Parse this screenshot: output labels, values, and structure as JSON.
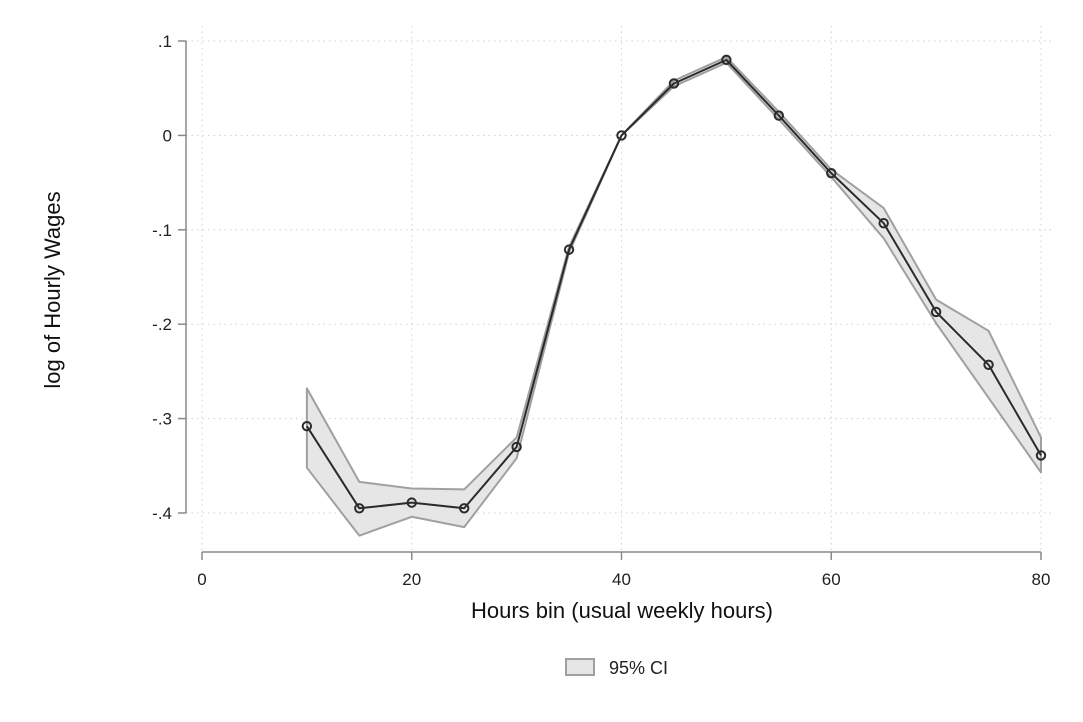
{
  "chart_data": {
    "type": "line",
    "title": "",
    "xlabel": "Hours bin (usual weekly hours)",
    "ylabel": "log of Hourly Wages",
    "xlim": [
      0,
      80
    ],
    "ylim": [
      -0.4,
      0.1
    ],
    "x_ticks": [
      {
        "value": 0,
        "label": "0"
      },
      {
        "value": 20,
        "label": "20"
      },
      {
        "value": 40,
        "label": "40"
      },
      {
        "value": 60,
        "label": "60"
      },
      {
        "value": 80,
        "label": "80"
      }
    ],
    "y_ticks": [
      {
        "value": 0.1,
        "label": ".1"
      },
      {
        "value": 0,
        "label": "0"
      },
      {
        "value": -0.1,
        "label": "-.1"
      },
      {
        "value": -0.2,
        "label": "-.2"
      },
      {
        "value": -0.3,
        "label": "-.3"
      },
      {
        "value": -0.4,
        "label": "-.4"
      }
    ],
    "grid": true,
    "legend_position": "bottom",
    "legend": [
      {
        "label": "95% CI"
      }
    ],
    "x": [
      10,
      15,
      20,
      25,
      30,
      35,
      40,
      45,
      50,
      55,
      60,
      65,
      70,
      75,
      80
    ],
    "estimate": [
      -0.308,
      -0.395,
      -0.389,
      -0.395,
      -0.33,
      -0.121,
      0.0,
      0.055,
      0.08,
      0.021,
      -0.04,
      -0.093,
      -0.187,
      -0.243,
      -0.339
    ],
    "ci_lower": [
      -0.352,
      -0.424,
      -0.404,
      -0.415,
      -0.342,
      -0.124,
      0.0,
      0.052,
      0.077,
      0.017,
      -0.044,
      -0.109,
      -0.199,
      -0.278,
      -0.357
    ],
    "ci_upper": [
      -0.268,
      -0.367,
      -0.374,
      -0.375,
      -0.32,
      -0.118,
      0.0,
      0.058,
      0.083,
      0.025,
      -0.036,
      -0.077,
      -0.174,
      -0.207,
      -0.32
    ],
    "colors": {
      "line": "#2b2b2b",
      "band_fill": "#e6e6e6",
      "band_edge": "#a0a0a0",
      "grid": "#cfcfcf",
      "axis": "#888888"
    }
  }
}
